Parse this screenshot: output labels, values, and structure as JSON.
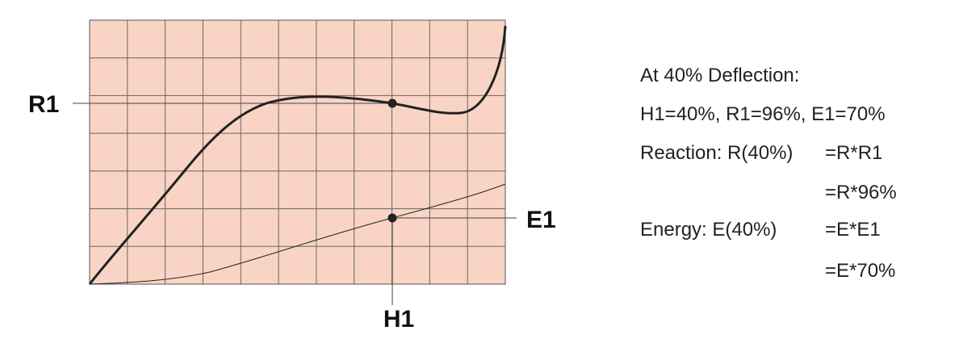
{
  "labels": {
    "r1": "R1",
    "e1": "E1",
    "h1": "H1"
  },
  "notes": {
    "heading": "At 40% Deflection:",
    "values": "H1=40%, R1=96%, E1=70%",
    "reaction_label": "Reaction: R(40%)",
    "reaction_formula": "=R*R1",
    "reaction_result": "=R*96%",
    "energy_label": "Energy: E(40%)",
    "energy_formula": "=E*E1",
    "energy_result": "=E*70%"
  }
}
